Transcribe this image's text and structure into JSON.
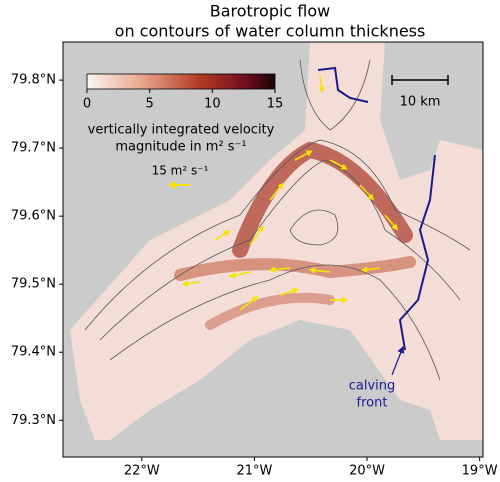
{
  "chart_data": {
    "type": "map",
    "title": [
      "Barotropic flow",
      "on contours of water column thickness"
    ],
    "xlim": [
      -22.7,
      -18.97
    ],
    "ylim": [
      79.246,
      79.856
    ],
    "xticks": [
      {
        "value": -22,
        "label": "22°W"
      },
      {
        "value": -21,
        "label": "21°W"
      },
      {
        "value": -20,
        "label": "20°W"
      },
      {
        "value": -19,
        "label": "19°W"
      }
    ],
    "yticks": [
      {
        "value": 79.3,
        "label": "79.3°N"
      },
      {
        "value": 79.4,
        "label": "79.4°N"
      },
      {
        "value": 79.5,
        "label": "79.5°N"
      },
      {
        "value": 79.6,
        "label": "79.6°N"
      },
      {
        "value": 79.7,
        "label": "79.7°N"
      },
      {
        "value": 79.8,
        "label": "79.8°N"
      }
    ],
    "background_color": "#cbcbcb",
    "colorbar": {
      "lim": [
        0,
        15
      ],
      "ticks": [
        0,
        5,
        10,
        15
      ],
      "label": [
        "vertically integrated velocity",
        "magnitude in m² s⁻¹"
      ]
    },
    "quiver_key": "15 m² s⁻¹",
    "scale_bar": "10 km",
    "annotation": [
      "calving",
      "front"
    ]
  }
}
